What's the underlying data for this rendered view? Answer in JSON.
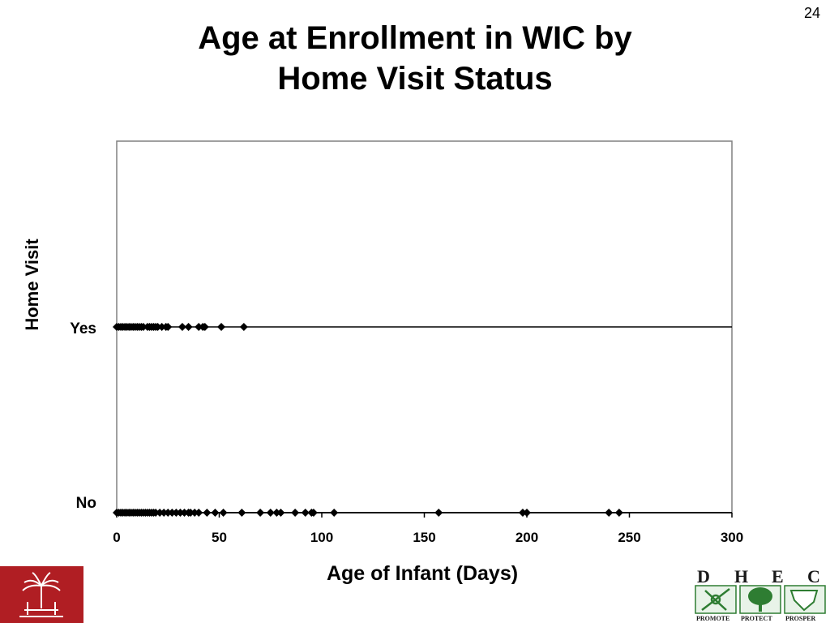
{
  "slide_number": "24",
  "title_lines": [
    "Age at Enrollment in WIC by",
    "Home Visit Status"
  ],
  "logos": {
    "left": {
      "icon": "palmetto-tree-seal-icon",
      "color": "#b01e23"
    },
    "right": {
      "letters": [
        "D",
        "H",
        "E",
        "C"
      ],
      "mottos": [
        "PROMOTE",
        "PROTECT",
        "PROSPER"
      ],
      "color": "#2e7d32"
    }
  },
  "chart_data": {
    "type": "scatter",
    "title": "",
    "xlabel": "Age of Infant (Days)",
    "ylabel": "Home Visit",
    "xlim": [
      0,
      300
    ],
    "x_ticks": [
      0,
      50,
      100,
      150,
      200,
      250,
      300
    ],
    "categories": [
      "No",
      "Yes"
    ],
    "grid": false,
    "marker": "diamond",
    "series": [
      {
        "category": "Yes",
        "x": [
          0,
          1,
          2,
          3,
          4,
          5,
          6,
          7,
          8,
          9,
          10,
          11,
          12,
          13,
          15,
          16,
          17,
          18,
          19,
          20,
          22,
          24,
          25,
          32,
          35,
          40,
          42,
          43,
          51,
          62
        ]
      },
      {
        "category": "No",
        "x": [
          0,
          1,
          2,
          3,
          4,
          5,
          6,
          7,
          8,
          9,
          10,
          11,
          12,
          13,
          14,
          15,
          16,
          17,
          18,
          19,
          21,
          23,
          25,
          27,
          29,
          31,
          33,
          35,
          36,
          38,
          40,
          44,
          48,
          52,
          61,
          70,
          75,
          78,
          80,
          87,
          92,
          95,
          96,
          106,
          157,
          198,
          200,
          240,
          245
        ]
      }
    ]
  }
}
